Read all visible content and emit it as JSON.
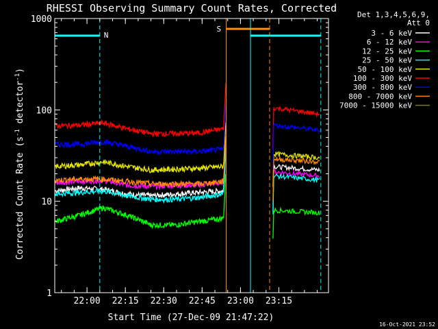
{
  "chart_data": {
    "type": "line",
    "title": "RHESSI Observing Summary Count Rates, Corrected",
    "xlabel": "Start Time (27-Dec-09 21:47:22)",
    "ylabel_main": "Corrected Count Rate (s",
    "ylabel_sup1": "-1",
    "ylabel_mid": " detector",
    "ylabel_sup2": "-1",
    "ylabel_end": ")",
    "yscale": "log",
    "ylim": [
      1,
      1000
    ],
    "xlim_minutes": [
      0,
      107
    ],
    "x_ticks": [
      {
        "label": "22:00",
        "minute": 12.6
      },
      {
        "label": "22:15",
        "minute": 27.6
      },
      {
        "label": "22:30",
        "minute": 42.6
      },
      {
        "label": "22:45",
        "minute": 57.6
      },
      {
        "label": "23:00",
        "minute": 72.6
      },
      {
        "label": "23:15",
        "minute": 87.6
      }
    ],
    "y_ticks": [
      {
        "label": "1",
        "value": 1
      },
      {
        "label": "10",
        "value": 10
      },
      {
        "label": "100",
        "value": 100
      },
      {
        "label": "1000",
        "value": 1000
      }
    ],
    "legend_header": [
      "Det 1,3,4,5,6,9,",
      "Att 0"
    ],
    "timestamp": "16-Oct-2021 23:52",
    "flags": [
      {
        "label": "N",
        "color": "#00ffff"
      },
      {
        "label": "S",
        "color": "#ff8c00"
      }
    ],
    "night_segments": [
      {
        "start": 0,
        "end": 17.6,
        "value": 650,
        "color": "#00ffff"
      },
      {
        "start": 76.5,
        "end": 104,
        "value": 650,
        "color": "#00ffff"
      }
    ],
    "saa_segment": {
      "start": 67,
      "end": 84,
      "value": 770,
      "color": "#ff8c00"
    },
    "markers": [
      {
        "minute": 17.6,
        "color": "#00ffff",
        "style": "dashed"
      },
      {
        "minute": 67,
        "color": "#ff8c00",
        "style": "solid"
      },
      {
        "minute": 76.5,
        "color": "#00ffff",
        "style": "solid"
      },
      {
        "minute": 84,
        "color": "#ff8c00",
        "style": "dashed"
      },
      {
        "minute": 104,
        "color": "#00ffff",
        "style": "dashed"
      }
    ],
    "gap": [
      67,
      85
    ],
    "series": [
      {
        "name": "3 - 6 keV",
        "color": "#ffffff",
        "pre": [
          13,
          14,
          13.5,
          12,
          11.5,
          12,
          12.5,
          13
        ],
        "post": [
          24,
          22
        ]
      },
      {
        "name": "6 - 12 keV",
        "color": "#ff00ff",
        "pre": [
          16,
          16.5,
          17,
          15,
          14.5,
          15,
          15,
          16
        ],
        "post": [
          21,
          19
        ]
      },
      {
        "name": "12 - 25 keV",
        "color": "#00ff00",
        "pre": [
          6,
          7,
          8.5,
          7,
          5.5,
          5.5,
          6,
          6.5
        ],
        "post": [
          8,
          7.5
        ]
      },
      {
        "name": "25 - 50 keV",
        "color": "#00ffff",
        "pre": [
          12,
          12.5,
          13,
          11.5,
          10.5,
          10.5,
          11,
          12
        ],
        "post": [
          19,
          17
        ]
      },
      {
        "name": "50 - 100 keV",
        "color": "#e6e600",
        "pre": [
          24,
          25,
          27,
          24,
          22,
          22.5,
          23,
          24
        ],
        "post": [
          33,
          30
        ]
      },
      {
        "name": "100 - 300 keV",
        "color": "#ff0000",
        "pre": [
          67,
          68,
          72,
          62,
          55,
          55,
          56,
          62
        ],
        "post": [
          105,
          90
        ]
      },
      {
        "name": "300 - 800 keV",
        "color": "#0000ff",
        "pre": [
          42,
          42,
          45,
          40,
          35,
          35,
          35,
          37
        ],
        "post": [
          68,
          60
        ]
      },
      {
        "name": "800 - 7000 keV",
        "color": "#ff8c00",
        "pre": [
          17,
          17.5,
          17.5,
          16.5,
          15.5,
          15.5,
          15.5,
          16.5
        ],
        "post": [
          29,
          27
        ]
      },
      {
        "name": "7000 - 15000 keV",
        "color": "#808000",
        "pre": [],
        "post": []
      }
    ]
  }
}
